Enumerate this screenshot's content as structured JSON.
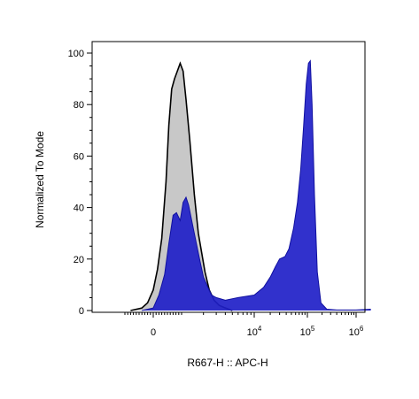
{
  "chart_data": {
    "type": "area",
    "xlabel": "R667-H :: APC-H",
    "ylabel": "Normalized To Mode",
    "ylim": [
      0,
      100
    ],
    "xscale": "biexponential",
    "y_ticks": [
      0,
      20,
      40,
      60,
      80,
      100
    ],
    "x_ticks": [
      {
        "value": 0,
        "base": "0",
        "exp": ""
      },
      {
        "value": 10000,
        "base": "10",
        "exp": "4"
      },
      {
        "value": 100000,
        "base": "10",
        "exp": "5"
      },
      {
        "value": 1000000,
        "base": "10",
        "exp": "6"
      }
    ],
    "grid": false,
    "series": [
      {
        "color": "#c8c8c8",
        "stroke": "#000000",
        "points": [
          [
            -800,
            0
          ],
          [
            -400,
            1
          ],
          [
            -200,
            3
          ],
          [
            0,
            8
          ],
          [
            150,
            16
          ],
          [
            300,
            28
          ],
          [
            450,
            50
          ],
          [
            550,
            72
          ],
          [
            650,
            86
          ],
          [
            750,
            90
          ],
          [
            850,
            93
          ],
          [
            950,
            96
          ],
          [
            1050,
            93
          ],
          [
            1150,
            82
          ],
          [
            1300,
            66
          ],
          [
            1500,
            45
          ],
          [
            1700,
            30
          ],
          [
            1900,
            22
          ],
          [
            2100,
            15
          ],
          [
            2400,
            8
          ],
          [
            2800,
            4
          ],
          [
            3300,
            2
          ],
          [
            4000,
            1
          ],
          [
            5000,
            0
          ]
        ]
      },
      {
        "color": "#2020c8",
        "stroke": "#1010a0",
        "points": [
          [
            -400,
            0
          ],
          [
            0,
            1
          ],
          [
            200,
            6
          ],
          [
            400,
            14
          ],
          [
            550,
            26
          ],
          [
            700,
            37
          ],
          [
            820,
            38
          ],
          [
            950,
            35
          ],
          [
            1050,
            42
          ],
          [
            1150,
            44
          ],
          [
            1250,
            41
          ],
          [
            1400,
            34
          ],
          [
            1600,
            26
          ],
          [
            1800,
            19
          ],
          [
            2000,
            13
          ],
          [
            2300,
            9
          ],
          [
            2600,
            6
          ],
          [
            3000,
            5
          ],
          [
            4000,
            4
          ],
          [
            6000,
            5
          ],
          [
            10000,
            6
          ],
          [
            15000,
            9
          ],
          [
            20000,
            13
          ],
          [
            25000,
            17
          ],
          [
            30000,
            20
          ],
          [
            38000,
            21
          ],
          [
            45000,
            24
          ],
          [
            55000,
            32
          ],
          [
            65000,
            42
          ],
          [
            75000,
            55
          ],
          [
            85000,
            72
          ],
          [
            95000,
            88
          ],
          [
            105000,
            96
          ],
          [
            115000,
            97
          ],
          [
            125000,
            80
          ],
          [
            140000,
            45
          ],
          [
            160000,
            15
          ],
          [
            190000,
            3
          ],
          [
            250000,
            0.5
          ],
          [
            400000,
            0.2
          ],
          [
            1000000,
            0.2
          ],
          [
            2000000,
            0.5
          ]
        ]
      }
    ]
  }
}
